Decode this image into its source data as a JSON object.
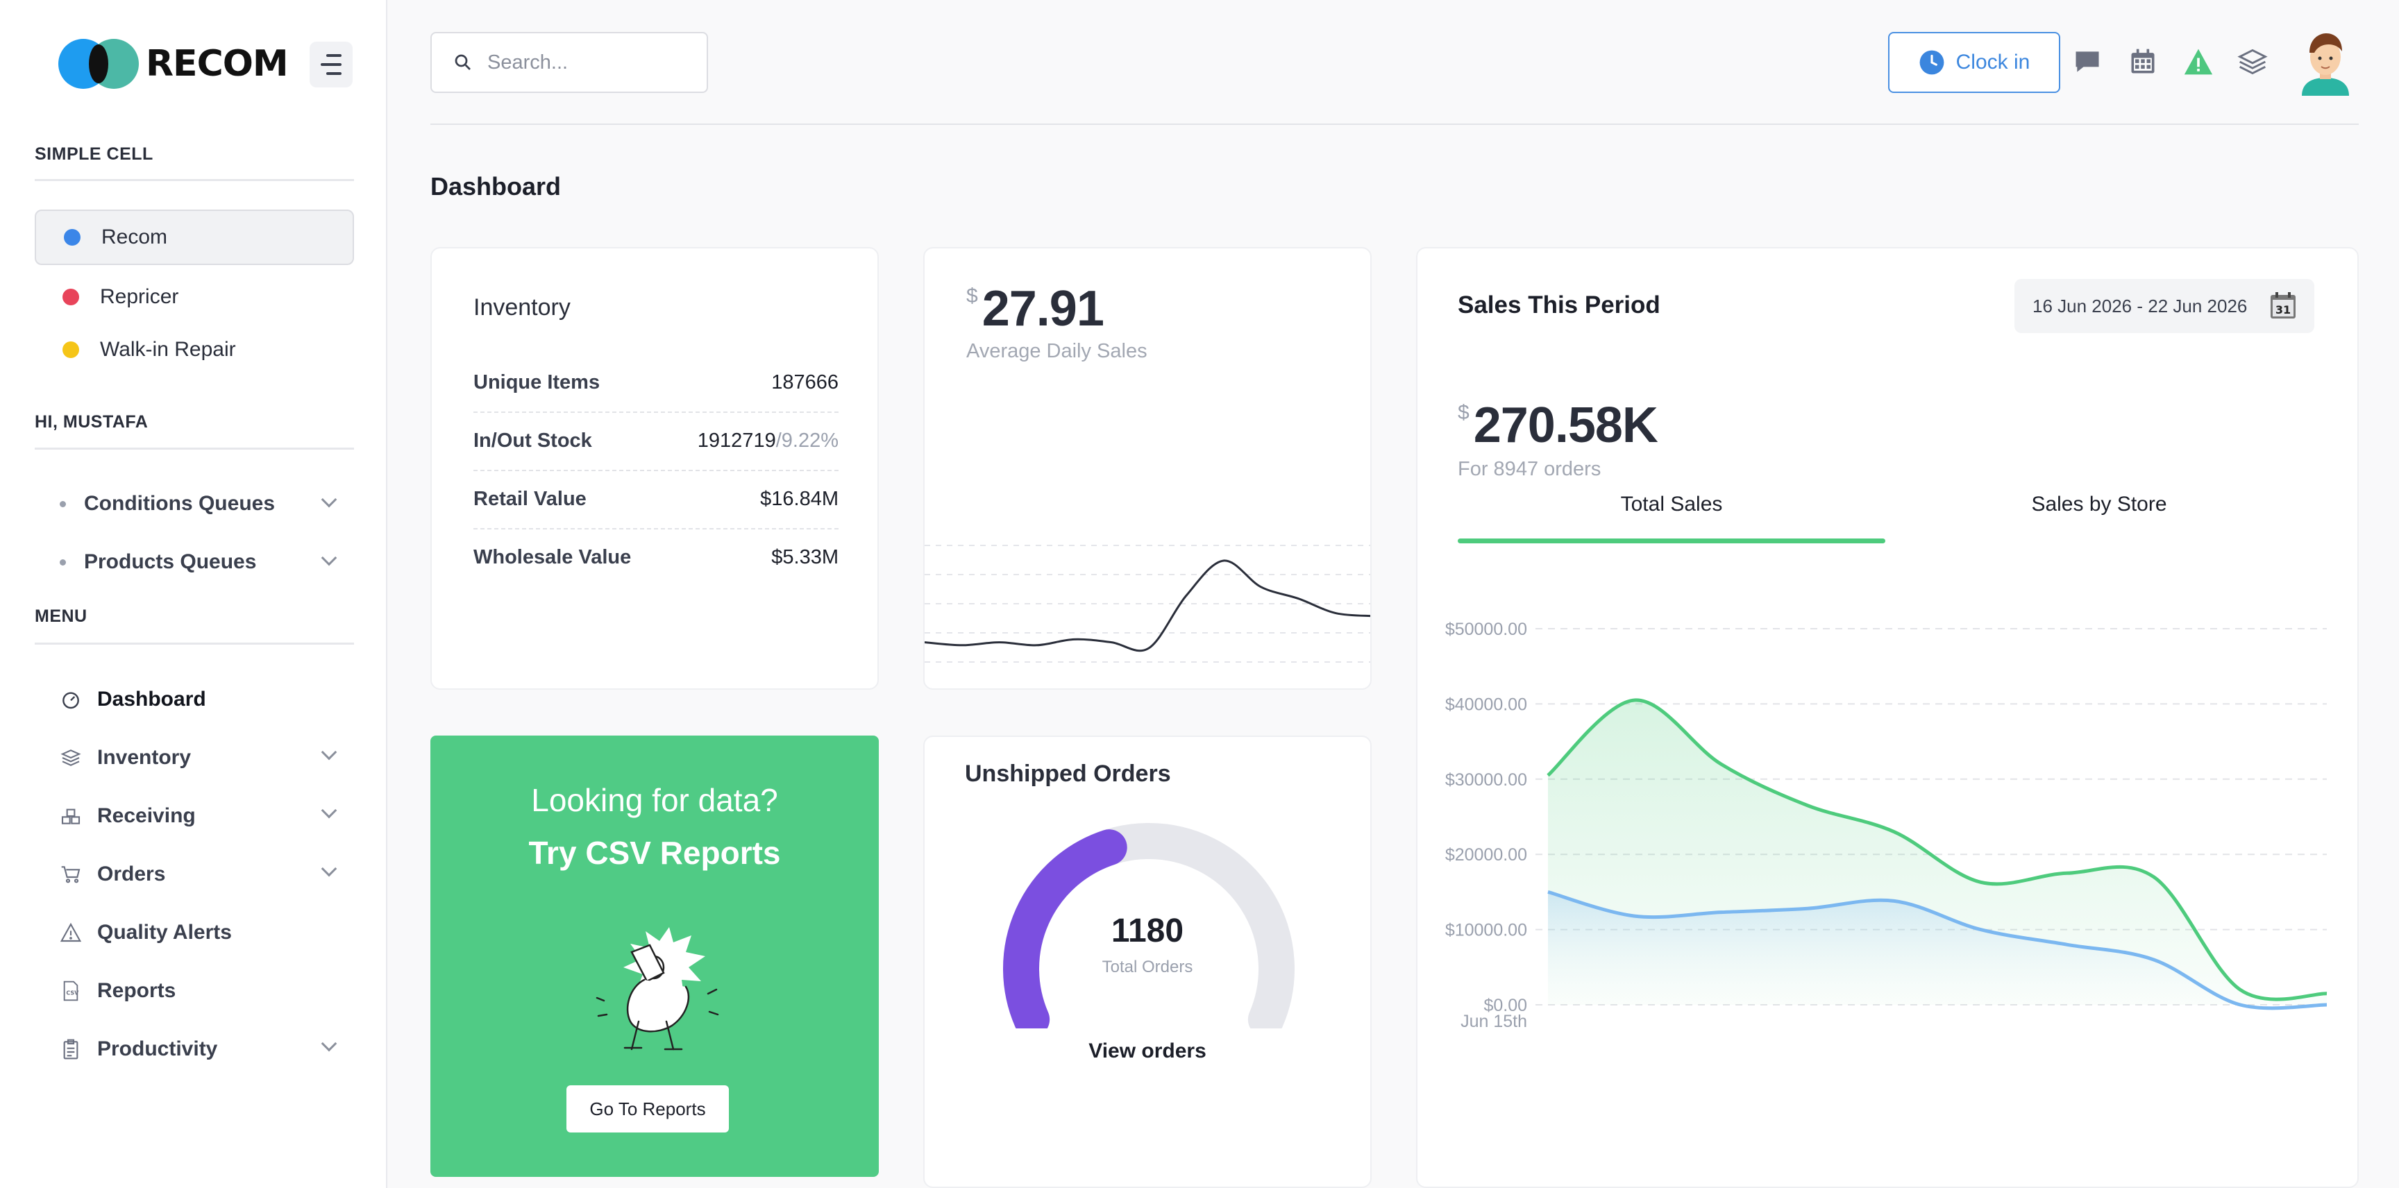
{
  "brand": {
    "name": "RECOM"
  },
  "sidebar": {
    "simple_cell_label": "SIMPLE CELL",
    "cells": [
      {
        "label": "Recom",
        "color": "#3b86e8",
        "active": true
      },
      {
        "label": "Repricer",
        "color": "#e8445a",
        "active": false
      },
      {
        "label": "Walk-in Repair",
        "color": "#f5c518",
        "active": false
      }
    ],
    "greeting_label": "HI, MUSTAFA",
    "queues": [
      {
        "label": "Conditions Queues"
      },
      {
        "label": "Products Queues"
      }
    ],
    "menu_label": "MENU",
    "menu": [
      {
        "label": "Dashboard",
        "icon": "gauge-icon",
        "active": true,
        "expandable": false
      },
      {
        "label": "Inventory",
        "icon": "layers-icon",
        "expandable": true
      },
      {
        "label": "Receiving",
        "icon": "boxes-icon",
        "expandable": true
      },
      {
        "label": "Orders",
        "icon": "cart-icon",
        "expandable": true
      },
      {
        "label": "Quality Alerts",
        "icon": "warning-icon",
        "expandable": false
      },
      {
        "label": "Reports",
        "icon": "csv-file-icon",
        "expandable": false
      },
      {
        "label": "Productivity",
        "icon": "clipboard-icon",
        "expandable": true
      }
    ]
  },
  "header": {
    "search_placeholder": "Search...",
    "clock_in_label": "Clock in",
    "icons": [
      "chat-icon",
      "calendar-icon",
      "alert-icon",
      "layers-icon",
      "avatar"
    ]
  },
  "main": {
    "page_title": "Dashboard",
    "inventory": {
      "title": "Inventory",
      "rows": [
        {
          "label": "Unique Items",
          "value": "187666",
          "pct": ""
        },
        {
          "label": "In/Out Stock",
          "value": "1912719",
          "pct": "/9.22%"
        },
        {
          "label": "Retail Value",
          "value": "$16.84M",
          "pct": ""
        },
        {
          "label": "Wholesale Value",
          "value": "$5.33M",
          "pct": ""
        }
      ]
    },
    "avg_daily": {
      "currency": "$",
      "amount": "27.91",
      "label": "Average Daily Sales"
    },
    "promo": {
      "line1": "Looking for data?",
      "line2": "Try CSV Reports",
      "button": "Go To Reports",
      "color": "#50cb85"
    },
    "unshipped": {
      "title": "Unshipped Orders",
      "count": "1180",
      "count_label": "Total Orders",
      "fill_fraction": 0.42,
      "link": "View orders",
      "color": "#7b4fe0"
    },
    "sales_period": {
      "title": "Sales This Period",
      "date_range": "16 Jun 2026 - 22 Jun 2026",
      "calendar_day": "31",
      "currency": "$",
      "amount": "270.58K",
      "orders_label": "For 8947 orders",
      "tabs": [
        {
          "label": "Total Sales",
          "active": true
        },
        {
          "label": "Sales by Store",
          "active": false
        }
      ]
    }
  },
  "chart_data": [
    {
      "type": "line",
      "title": "",
      "description_label": "Average Daily Sales sparkline",
      "x": [
        0,
        1,
        2,
        3,
        4,
        5,
        6,
        7,
        8,
        9,
        10,
        11,
        12
      ],
      "series": [
        {
          "values": [
            12,
            11,
            12,
            11,
            13,
            12,
            10,
            28,
            40,
            31,
            27,
            22,
            21
          ],
          "color": "#2a2e3a"
        }
      ],
      "ylim": [
        0,
        50
      ],
      "grid": true
    },
    {
      "type": "area",
      "x_first_label": "Jun 15th",
      "yticks": [
        "$50000.00",
        "$40000.00",
        "$30000.00",
        "$20000.00",
        "$10000.00",
        "$0.00"
      ],
      "ylim": [
        0,
        50000
      ],
      "x": [
        0,
        1,
        2,
        3,
        4,
        5,
        6,
        7,
        8,
        9
      ],
      "series": [
        {
          "values": [
            30500,
            40500,
            32000,
            26500,
            23000,
            16300,
            17500,
            17000,
            2000,
            1500
          ],
          "color": "#4ecb7d"
        },
        {
          "values": [
            15000,
            11800,
            12300,
            12800,
            13800,
            10000,
            8000,
            6000,
            0,
            0
          ],
          "color": "#7bb7f0"
        }
      ],
      "grid": true
    }
  ]
}
